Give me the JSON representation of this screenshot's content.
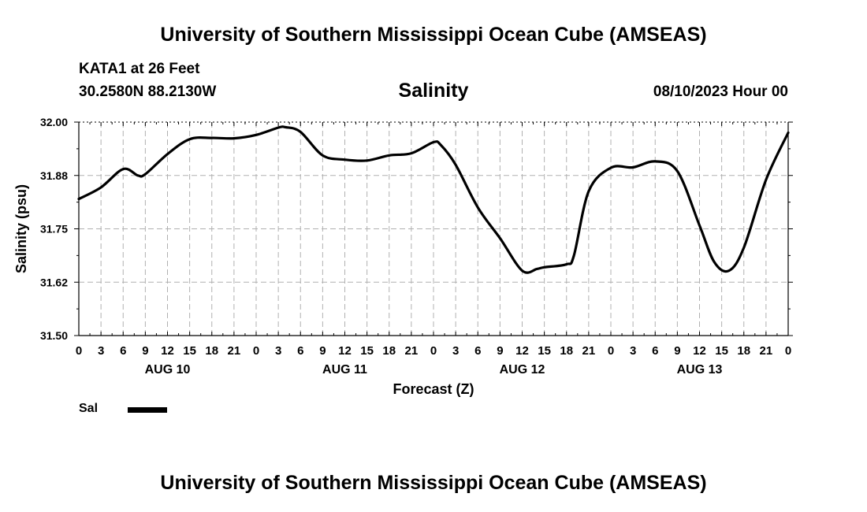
{
  "page": {
    "title_top": "University of Southern Mississippi Ocean Cube (AMSEAS)",
    "title_bottom": "University of Southern Mississippi Ocean Cube (AMSEAS)",
    "station": "KATA1 at 26 Feet",
    "coords": "30.2580N  88.2130W",
    "datetime": "08/10/2023 Hour 00"
  },
  "chart_data": {
    "type": "line",
    "title": "Salinity",
    "xlabel": "Forecast (Z)",
    "ylabel": "Salinity (psu)",
    "xlim": [
      0,
      96
    ],
    "ylim": [
      31.5,
      32.0
    ],
    "y_ticks": [
      "32.00",
      "31.88",
      "31.75",
      "31.62",
      "31.50"
    ],
    "y_tick_values": [
      32.0,
      31.875,
      31.75,
      31.625,
      31.5
    ],
    "x_tick_labels": [
      "0",
      "3",
      "6",
      "9",
      "12",
      "15",
      "18",
      "21",
      "0",
      "3",
      "6",
      "9",
      "12",
      "15",
      "18",
      "21",
      "0",
      "3",
      "6",
      "9",
      "12",
      "15",
      "18",
      "21",
      "0",
      "3",
      "6",
      "9",
      "12",
      "15",
      "18",
      "21",
      "0"
    ],
    "day_labels": [
      {
        "label": "AUG 10",
        "center_hour": 12
      },
      {
        "label": "AUG 11",
        "center_hour": 36
      },
      {
        "label": "AUG 12",
        "center_hour": 60
      },
      {
        "label": "AUG 13",
        "center_hour": 84
      }
    ],
    "grid": true,
    "legend": {
      "label": "Sal",
      "position": "bottom-left"
    },
    "series": [
      {
        "name": "Sal",
        "color": "#000000",
        "x": [
          0,
          3,
          6,
          8,
          9,
          12,
          15,
          18,
          21,
          24,
          27,
          28,
          30,
          33,
          36,
          39,
          42,
          45,
          48,
          49,
          51,
          54,
          57,
          60,
          62,
          63,
          66,
          67,
          69,
          72,
          75,
          78,
          81,
          84,
          86,
          88,
          90,
          93,
          96
        ],
        "values": [
          31.82,
          31.847,
          31.89,
          31.875,
          31.878,
          31.925,
          31.96,
          31.963,
          31.962,
          31.97,
          31.987,
          31.988,
          31.977,
          31.922,
          31.912,
          31.91,
          31.922,
          31.927,
          31.953,
          31.946,
          31.9,
          31.8,
          31.728,
          31.652,
          31.656,
          31.66,
          31.667,
          31.687,
          31.838,
          31.893,
          31.894,
          31.908,
          31.885,
          31.758,
          31.672,
          31.652,
          31.706,
          31.865,
          31.975
        ]
      }
    ]
  }
}
